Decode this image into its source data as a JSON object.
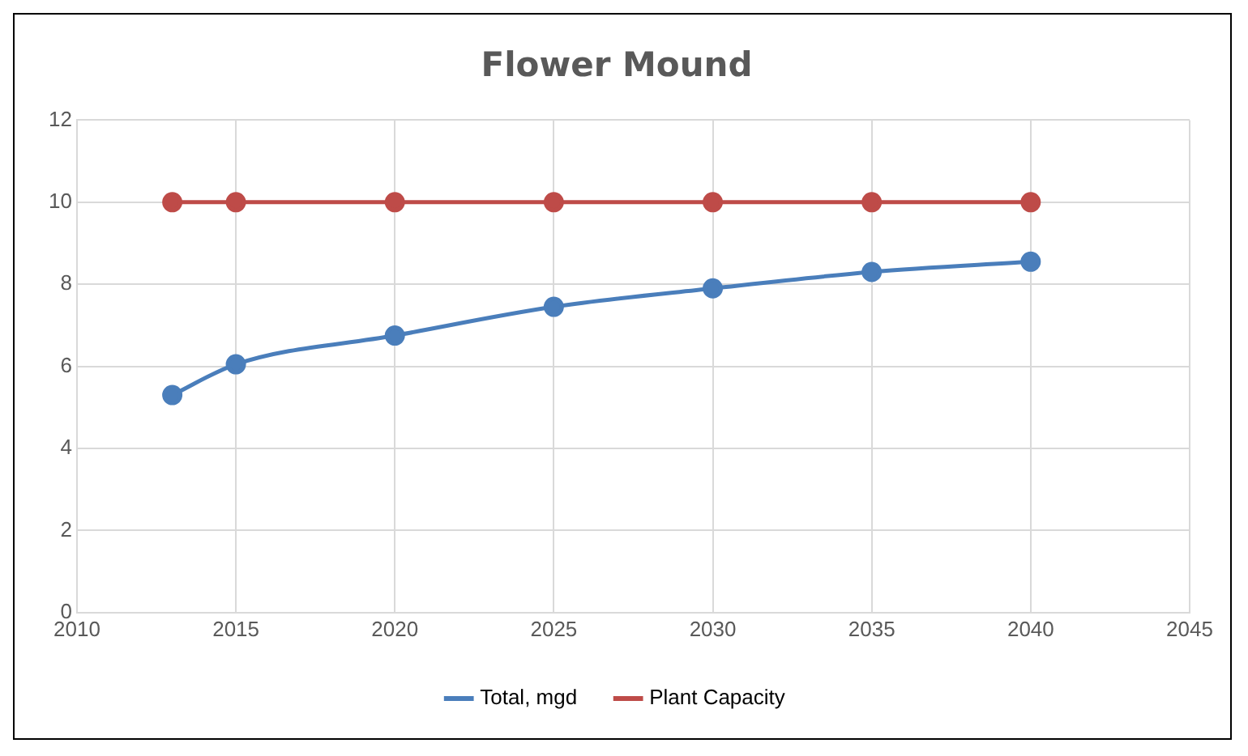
{
  "chart_data": {
    "type": "line",
    "title": "Flower Mound",
    "x": [
      2013,
      2015,
      2020,
      2025,
      2030,
      2035,
      2040
    ],
    "series": [
      {
        "name": "Total, mgd",
        "color": "#4a7ebb",
        "values": [
          5.3,
          6.05,
          6.75,
          7.45,
          7.9,
          8.3,
          8.55
        ]
      },
      {
        "name": "Plant Capacity",
        "color": "#be4b48",
        "values": [
          10,
          10,
          10,
          10,
          10,
          10,
          10
        ]
      }
    ],
    "xlim": [
      2010,
      2045
    ],
    "xticks": [
      2010,
      2015,
      2020,
      2025,
      2030,
      2035,
      2040,
      2045
    ],
    "ylim": [
      0,
      12
    ],
    "yticks": [
      0,
      2,
      4,
      6,
      8,
      10,
      12
    ],
    "grid": true,
    "legend": "bottom",
    "marker": "circle",
    "line_style": "solid"
  }
}
